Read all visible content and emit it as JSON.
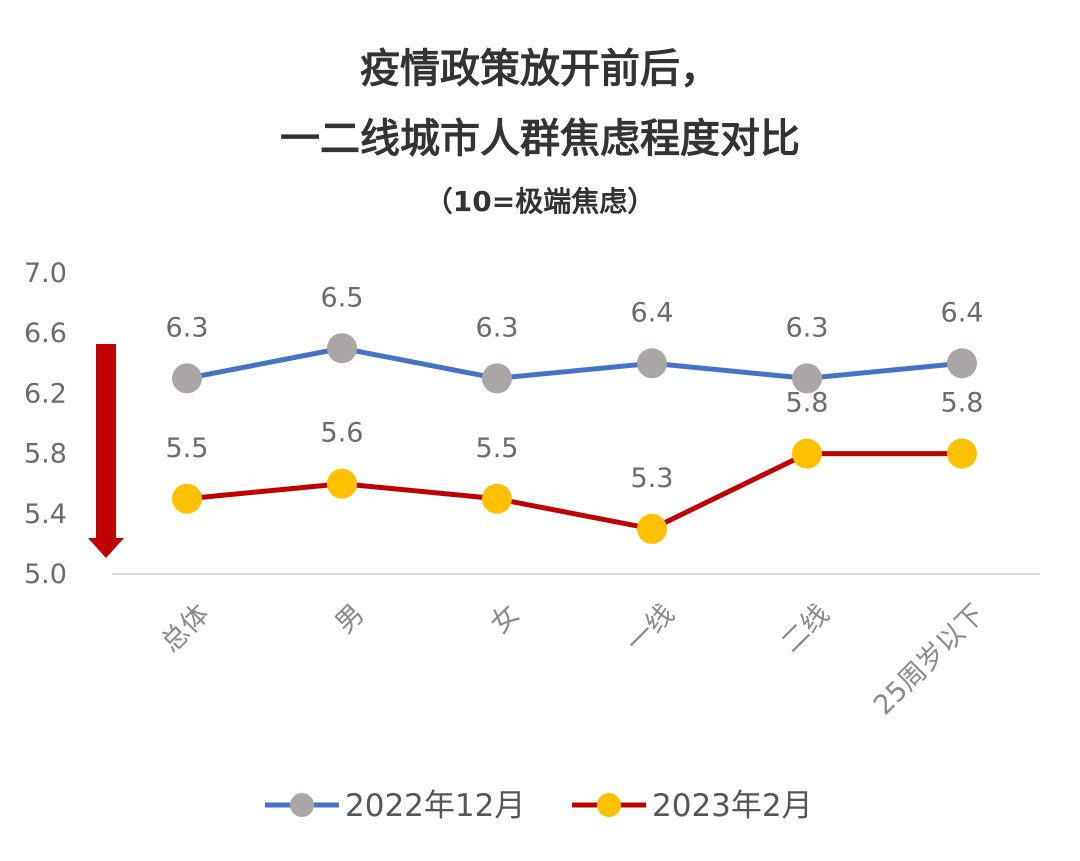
{
  "chart_data": {
    "type": "line",
    "title_line1": "疫情政策放开前后，",
    "title_line2": "一二线城市人群焦虑程度对比",
    "subtitle": "（10=极端焦虑）",
    "categories": [
      "总体",
      "男",
      "女",
      "一线",
      "二线",
      "25周岁以下"
    ],
    "yticks": [
      "7.0",
      "6.6",
      "6.2",
      "5.8",
      "5.4",
      "5.0"
    ],
    "ylim": [
      5.0,
      7.0
    ],
    "grid": false,
    "legend_position": "bottom",
    "series": [
      {
        "name": "2022年12月",
        "values": [
          6.3,
          6.5,
          6.3,
          6.4,
          6.3,
          6.4
        ],
        "labels": [
          "6.3",
          "6.5",
          "6.3",
          "6.4",
          "6.3",
          "6.4"
        ],
        "line_color": "#4472c4",
        "marker_color": "#aaa6a6"
      },
      {
        "name": "2023年2月",
        "values": [
          5.5,
          5.6,
          5.5,
          5.3,
          5.8,
          5.8
        ],
        "labels": [
          "5.5",
          "5.6",
          "5.5",
          "5.3",
          "5.8",
          "5.8"
        ],
        "line_color": "#c00000",
        "marker_color": "#ffc000"
      }
    ],
    "annotation_arrow_color": "#c00000"
  }
}
